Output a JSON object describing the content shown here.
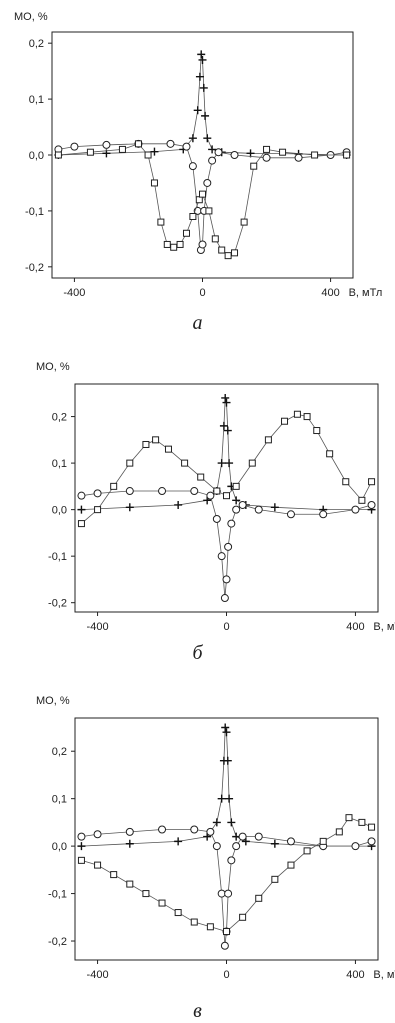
{
  "caption_labels": [
    "а",
    "б",
    "в"
  ],
  "chart_data": [
    {
      "type": "scatter",
      "title": "",
      "ylabel": "МО, %",
      "xlabel": "В, мТл",
      "xlim": [
        -470,
        470
      ],
      "ylim": [
        -0.22,
        0.22
      ],
      "x_ticks": [
        -400,
        0,
        400
      ],
      "x_tick_labels": [
        "-400",
        "0",
        "400"
      ],
      "y_ticks": [
        0.2,
        0.1,
        0.0,
        -0.1,
        -0.2
      ],
      "y_tick_labels": [
        "0,2",
        "0,1",
        "0,0",
        "-0,1",
        "-0,2"
      ],
      "caption": "а",
      "grid": false,
      "series": [
        {
          "marker": "plus",
          "x": [
            -450,
            -300,
            -150,
            -60,
            -30,
            -15,
            -8,
            -4,
            0,
            4,
            8,
            15,
            30,
            60,
            150,
            300,
            450
          ],
          "y": [
            0.0,
            0.003,
            0.006,
            0.01,
            0.03,
            0.08,
            0.14,
            0.18,
            0.17,
            0.12,
            0.07,
            0.03,
            0.01,
            0.005,
            0.003,
            0.002,
            0.0
          ]
        },
        {
          "marker": "circle",
          "x": [
            -450,
            -400,
            -300,
            -200,
            -100,
            -50,
            -30,
            -15,
            -5,
            0,
            5,
            15,
            30,
            50,
            100,
            200,
            300,
            400,
            450
          ],
          "y": [
            0.01,
            0.015,
            0.018,
            0.02,
            0.02,
            0.015,
            -0.02,
            -0.1,
            -0.17,
            -0.16,
            -0.1,
            -0.05,
            -0.01,
            0.005,
            0.0,
            -0.005,
            -0.005,
            0.0,
            0.005
          ]
        },
        {
          "marker": "square",
          "x": [
            -450,
            -350,
            -250,
            -200,
            -170,
            -150,
            -130,
            -110,
            -90,
            -70,
            -50,
            -30,
            -10,
            0,
            20,
            40,
            60,
            80,
            100,
            130,
            160,
            200,
            250,
            350,
            450
          ],
          "y": [
            0.0,
            0.005,
            0.01,
            0.02,
            0.0,
            -0.05,
            -0.12,
            -0.16,
            -0.165,
            -0.16,
            -0.14,
            -0.11,
            -0.08,
            -0.07,
            -0.1,
            -0.15,
            -0.17,
            -0.18,
            -0.175,
            -0.12,
            -0.02,
            0.01,
            0.005,
            0.0,
            0.0
          ]
        }
      ]
    },
    {
      "type": "scatter",
      "title": "",
      "ylabel": "МО, %",
      "xlabel": "В, мТл",
      "xlim": [
        -470,
        470
      ],
      "ylim": [
        -0.22,
        0.27
      ],
      "x_ticks": [
        -400,
        0,
        400
      ],
      "x_tick_labels": [
        "-400",
        "0",
        "400"
      ],
      "y_ticks": [
        0.2,
        0.1,
        0.0,
        -0.1,
        -0.2
      ],
      "y_tick_labels": [
        "0,2",
        "0,1",
        "0,0",
        "-0,1",
        "-0,2"
      ],
      "caption": "б",
      "grid": false,
      "series": [
        {
          "marker": "plus",
          "x": [
            -450,
            -300,
            -150,
            -60,
            -30,
            -15,
            -8,
            -4,
            0,
            4,
            8,
            15,
            30,
            60,
            150,
            300,
            450
          ],
          "y": [
            0.0,
            0.005,
            0.01,
            0.02,
            0.04,
            0.1,
            0.18,
            0.24,
            0.23,
            0.17,
            0.1,
            0.05,
            0.02,
            0.01,
            0.005,
            0.0,
            0.0
          ]
        },
        {
          "marker": "circle",
          "x": [
            -450,
            -400,
            -300,
            -200,
            -100,
            -50,
            -30,
            -15,
            -5,
            0,
            5,
            15,
            30,
            50,
            100,
            200,
            300,
            400,
            450
          ],
          "y": [
            0.03,
            0.035,
            0.04,
            0.04,
            0.04,
            0.03,
            -0.02,
            -0.1,
            -0.19,
            -0.15,
            -0.08,
            -0.03,
            0.0,
            0.01,
            0.0,
            -0.01,
            -0.01,
            0.0,
            0.01
          ]
        },
        {
          "marker": "square",
          "x": [
            -450,
            -400,
            -350,
            -300,
            -250,
            -220,
            -180,
            -130,
            -80,
            -30,
            0,
            30,
            80,
            130,
            180,
            220,
            250,
            280,
            320,
            370,
            420,
            450
          ],
          "y": [
            -0.03,
            0.0,
            0.05,
            0.1,
            0.14,
            0.15,
            0.13,
            0.1,
            0.07,
            0.04,
            0.03,
            0.05,
            0.1,
            0.15,
            0.19,
            0.205,
            0.2,
            0.17,
            0.12,
            0.06,
            0.02,
            0.06
          ]
        }
      ]
    },
    {
      "type": "scatter",
      "title": "",
      "ylabel": "МО, %",
      "xlabel": "В, мТл",
      "xlim": [
        -470,
        470
      ],
      "ylim": [
        -0.24,
        0.27
      ],
      "x_ticks": [
        -400,
        0,
        400
      ],
      "x_tick_labels": [
        "-400",
        "0",
        "400"
      ],
      "y_ticks": [
        0.2,
        0.1,
        0.0,
        -0.1,
        -0.2
      ],
      "y_tick_labels": [
        "0,2",
        "0,1",
        "0,0",
        "-0,1",
        "-0,2"
      ],
      "caption": "в",
      "grid": false,
      "series": [
        {
          "marker": "plus",
          "x": [
            -450,
            -300,
            -150,
            -60,
            -30,
            -15,
            -8,
            -4,
            0,
            4,
            8,
            15,
            30,
            60,
            150,
            300,
            450
          ],
          "y": [
            0.0,
            0.005,
            0.01,
            0.02,
            0.05,
            0.1,
            0.18,
            0.25,
            0.24,
            0.18,
            0.1,
            0.05,
            0.02,
            0.01,
            0.005,
            0.0,
            0.0
          ]
        },
        {
          "marker": "circle",
          "x": [
            -450,
            -400,
            -300,
            -200,
            -100,
            -50,
            -30,
            -15,
            -5,
            0,
            5,
            15,
            30,
            50,
            100,
            200,
            300,
            400,
            450
          ],
          "y": [
            0.02,
            0.025,
            0.03,
            0.035,
            0.035,
            0.03,
            0.0,
            -0.1,
            -0.21,
            -0.18,
            -0.1,
            -0.03,
            0.0,
            0.02,
            0.02,
            0.01,
            0.0,
            0.0,
            0.01
          ]
        },
        {
          "marker": "square",
          "x": [
            -450,
            -400,
            -350,
            -300,
            -250,
            -200,
            -150,
            -100,
            -50,
            0,
            50,
            100,
            150,
            200,
            250,
            300,
            350,
            380,
            420,
            450
          ],
          "y": [
            -0.03,
            -0.04,
            -0.06,
            -0.08,
            -0.1,
            -0.12,
            -0.14,
            -0.16,
            -0.17,
            -0.18,
            -0.15,
            -0.11,
            -0.07,
            -0.04,
            -0.01,
            0.01,
            0.03,
            0.06,
            0.05,
            0.04
          ]
        }
      ]
    }
  ]
}
